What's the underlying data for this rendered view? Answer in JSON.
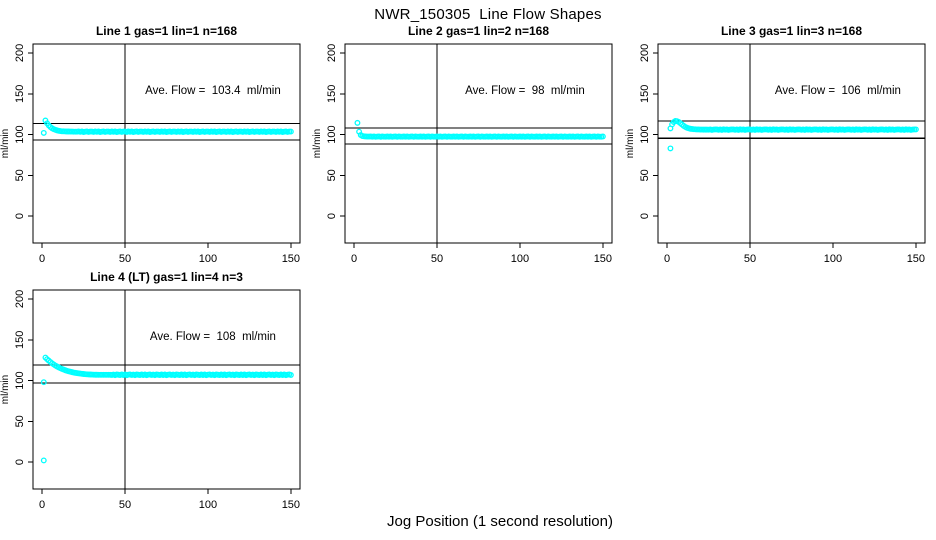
{
  "figure": {
    "title": "NWR_150305  Line Flow Shapes",
    "xlabel": "Jog Position (1 second resolution)",
    "ylabel": "ml/min",
    "point_color": "#00ffff",
    "axis_color": "#000000",
    "background": "#ffffff"
  },
  "chart_data": [
    {
      "type": "scatter",
      "title": "Line 1 gas=1 lin=1 n=168",
      "annotation": "Ave. Flow =  103.4  ml/min",
      "annotation_at": [
        103,
        150
      ],
      "ave_flow_ml_min": 103.4,
      "gas": 1,
      "lin": 1,
      "n": 168,
      "xlim": [
        -5.5,
        155.5
      ],
      "ylim": [
        -33,
        211
      ],
      "xticks": [
        0,
        50,
        100,
        150
      ],
      "yticks": [
        0,
        50,
        100,
        150,
        200
      ],
      "grid": false,
      "legend": false,
      "vline_x": 50,
      "hlines_y": [
        113.7,
        93.1
      ],
      "isolated_points": [
        [
          1,
          102
        ]
      ],
      "series": {
        "x_start": 2,
        "x_end": 150,
        "transient_y": [
          117.2,
          113.8,
          111.2,
          109.2,
          107.7,
          106.6,
          105.8,
          105.1,
          104.6,
          104.3,
          104.0,
          103.9,
          103.8,
          103.7,
          103.7,
          103.6,
          103.6,
          103.5,
          103.5,
          103.5
        ],
        "plateau_y": 103.4,
        "plateau_wiggle": [
          0.2,
          -0.2,
          0.4,
          -0.1,
          0.3,
          -0.3,
          0.1,
          0.4,
          -0.2,
          0.2
        ]
      }
    },
    {
      "type": "scatter",
      "title": "Line 2 gas=1 lin=2 n=168",
      "annotation": "Ave. Flow =  98  ml/min",
      "annotation_at": [
        103,
        150
      ],
      "ave_flow_ml_min": 98,
      "gas": 1,
      "lin": 2,
      "n": 168,
      "xlim": [
        -5.5,
        155.5
      ],
      "ylim": [
        -33,
        211
      ],
      "xticks": [
        0,
        50,
        100,
        150
      ],
      "yticks": [
        0,
        50,
        100,
        150,
        200
      ],
      "grid": false,
      "legend": false,
      "vline_x": 50,
      "hlines_y": [
        107.8,
        88.2
      ],
      "isolated_points": [],
      "series": {
        "x_start": 2,
        "x_end": 150,
        "transient_y": [
          114.3,
          103.5,
          99.4,
          98.2,
          97.8,
          97.6,
          97.5,
          97.5
        ],
        "plateau_y": 97.4,
        "plateau_wiggle": [
          0.2,
          -0.1,
          0.3,
          -0.2,
          0.1,
          0.2,
          -0.2,
          0.3,
          0.0,
          -0.1
        ]
      }
    },
    {
      "type": "scatter",
      "title": "Line 3 gas=1 lin=3 n=168",
      "annotation": "Ave. Flow =  106  ml/min",
      "annotation_at": [
        103,
        150
      ],
      "ave_flow_ml_min": 106,
      "gas": 1,
      "lin": 3,
      "n": 168,
      "xlim": [
        -5.5,
        155.5
      ],
      "ylim": [
        -33,
        211
      ],
      "xticks": [
        0,
        50,
        100,
        150
      ],
      "yticks": [
        0,
        50,
        100,
        150,
        200
      ],
      "grid": false,
      "legend": false,
      "vline_x": 50,
      "hlines_y": [
        116.6,
        95.4
      ],
      "isolated_points": [
        [
          2,
          83
        ]
      ],
      "series": {
        "x_start": 2,
        "x_end": 150,
        "transient_y": [
          107.5,
          112.5,
          115.3,
          116.6,
          116.4,
          115.4,
          113.9,
          112.2,
          110.6,
          109.3,
          108.3,
          107.6,
          107.1,
          106.8,
          106.6,
          106.4,
          106.3,
          106.2,
          106.1,
          106.1,
          106.0,
          106.0,
          106.0
        ],
        "plateau_y": 106.0,
        "plateau_wiggle": [
          0.3,
          -0.2,
          0.2,
          -0.3,
          0.4,
          -0.1,
          0.2,
          -0.3,
          0.1,
          0.2
        ]
      }
    },
    {
      "type": "scatter",
      "title": "Line 4 (LT) gas=1 lin=4 n=3",
      "annotation": "Ave. Flow =  108  ml/min",
      "annotation_at": [
        103,
        150
      ],
      "ave_flow_ml_min": 108,
      "gas": 1,
      "lin": 4,
      "n": 3,
      "xlim": [
        -5.5,
        155.5
      ],
      "ylim": [
        -33,
        211
      ],
      "xticks": [
        0,
        50,
        100,
        150
      ],
      "yticks": [
        0,
        50,
        100,
        150,
        200
      ],
      "grid": false,
      "legend": false,
      "vline_x": 50,
      "hlines_y": [
        118.8,
        97.2
      ],
      "isolated_points": [
        [
          1,
          98
        ],
        [
          1,
          2
        ]
      ],
      "series": {
        "x_start": 2,
        "x_end": 150,
        "transient_y": [
          128.2,
          126.2,
          124.4,
          122.7,
          121.1,
          119.7,
          118.4,
          117.2,
          116.1,
          115.1,
          114.2,
          113.4,
          112.6,
          111.9,
          111.3,
          110.8,
          110.3,
          109.8,
          109.4,
          109.1,
          108.8,
          108.5,
          108.2,
          108.0,
          107.8,
          107.6,
          107.5,
          107.4,
          107.3,
          107.2,
          107.1,
          107.1,
          107.0,
          107.0,
          107.0,
          107.0,
          107.0,
          107.0,
          107.0,
          107.0
        ],
        "plateau_y": 107.0,
        "plateau_wiggle": [
          0.4,
          -0.3,
          0.5,
          -0.4,
          0.2,
          0.5,
          -0.2,
          0.3,
          -0.4,
          0.4,
          0.1,
          -0.3
        ]
      }
    }
  ]
}
